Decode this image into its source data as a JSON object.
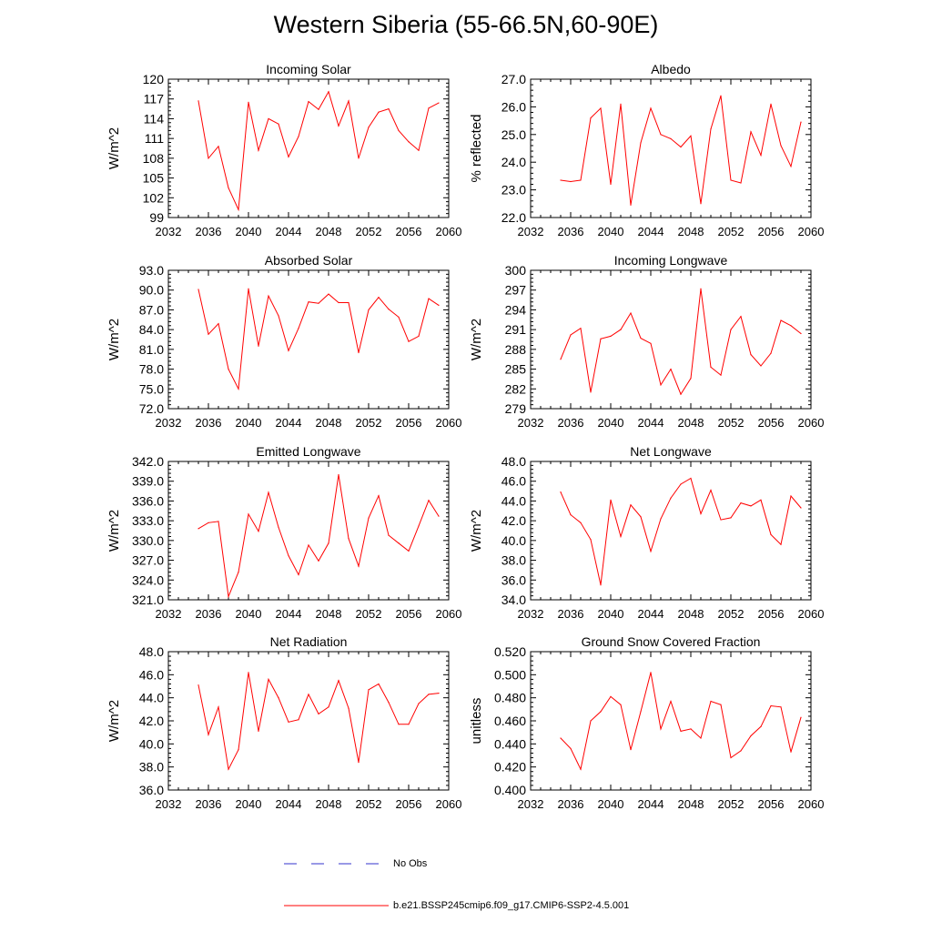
{
  "title": "Western Siberia (55-66.5N,60-90E)",
  "colors": {
    "model_line": "#ff0000",
    "obs_line": "#3333cc",
    "axis": "#000000"
  },
  "legend": {
    "obs_label": "No Obs",
    "model_label": "b.e21.BSSP245cmip6.f09_g17.CMIP6-SSP2-4.5.001"
  },
  "chart_data": [
    {
      "type": "line",
      "title": "Incoming Solar",
      "ylabel": "W/m^2",
      "xlim": [
        2032,
        2060
      ],
      "ylim": [
        99,
        120
      ],
      "xticks": [
        "2032",
        "2036",
        "2040",
        "2044",
        "2048",
        "2052",
        "2056",
        "2060"
      ],
      "yticks": [
        "99",
        "102",
        "105",
        "108",
        "111",
        "114",
        "117",
        "120"
      ],
      "series": [
        {
          "x": [
            2035,
            2036,
            2037,
            2038,
            2039,
            2040,
            2041,
            2042,
            2043,
            2044,
            2045,
            2046,
            2047,
            2048,
            2049,
            2050,
            2051,
            2052,
            2053,
            2054,
            2055,
            2056,
            2057,
            2058,
            2059
          ],
          "values": [
            116.7,
            108,
            109.8,
            103.5,
            100.2,
            116.5,
            109.2,
            114,
            113.2,
            108.2,
            111.3,
            116.6,
            115.4,
            118.1,
            112.9,
            116.7,
            108,
            112.7,
            115,
            115.5,
            112.2,
            110.5,
            109.2,
            115.6,
            116.4
          ]
        }
      ]
    },
    {
      "type": "line",
      "title": "Albedo",
      "ylabel": "% reflected",
      "xlim": [
        2032,
        2060
      ],
      "ylim": [
        22.0,
        27.0
      ],
      "xticks": [
        "2032",
        "2036",
        "2040",
        "2044",
        "2048",
        "2052",
        "2056",
        "2060"
      ],
      "yticks": [
        "22.0",
        "23.0",
        "24.0",
        "25.0",
        "26.0",
        "27.0"
      ],
      "series": [
        {
          "x": [
            2035,
            2036,
            2037,
            2038,
            2039,
            2040,
            2041,
            2042,
            2043,
            2044,
            2045,
            2046,
            2047,
            2048,
            2049,
            2050,
            2051,
            2052,
            2053,
            2054,
            2055,
            2056,
            2057,
            2058,
            2059
          ],
          "values": [
            23.35,
            23.3,
            23.35,
            25.6,
            25.95,
            23.2,
            26.1,
            22.45,
            24.7,
            25.95,
            25.0,
            24.85,
            24.55,
            24.95,
            22.5,
            25.2,
            26.4,
            23.35,
            23.25,
            25.1,
            24.25,
            26.1,
            24.6,
            23.85,
            25.45
          ]
        }
      ]
    },
    {
      "type": "line",
      "title": "Absorbed Solar",
      "ylabel": "W/m^2",
      "xlim": [
        2032,
        2060
      ],
      "ylim": [
        72.0,
        93.0
      ],
      "xticks": [
        "2032",
        "2036",
        "2040",
        "2044",
        "2048",
        "2052",
        "2056",
        "2060"
      ],
      "yticks": [
        "72.0",
        "75.0",
        "78.0",
        "81.0",
        "84.0",
        "87.0",
        "90.0",
        "93.0"
      ],
      "series": [
        {
          "x": [
            2035,
            2036,
            2037,
            2038,
            2039,
            2040,
            2041,
            2042,
            2043,
            2044,
            2045,
            2046,
            2047,
            2048,
            2049,
            2050,
            2051,
            2052,
            2053,
            2054,
            2055,
            2056,
            2057,
            2058,
            2059
          ],
          "values": [
            90.1,
            83.3,
            84.9,
            78.0,
            75.0,
            90.2,
            81.5,
            89.1,
            86.1,
            80.8,
            84.2,
            88.2,
            88.0,
            89.4,
            88.1,
            88.1,
            80.5,
            87.0,
            88.9,
            87.1,
            85.9,
            82.2,
            83.0,
            88.7,
            87.7
          ]
        }
      ]
    },
    {
      "type": "line",
      "title": "Incoming Longwave",
      "ylabel": "W/m^2",
      "xlim": [
        2032,
        2060
      ],
      "ylim": [
        279,
        300
      ],
      "xticks": [
        "2032",
        "2036",
        "2040",
        "2044",
        "2048",
        "2052",
        "2056",
        "2060"
      ],
      "yticks": [
        "279",
        "282",
        "285",
        "288",
        "291",
        "294",
        "297",
        "300"
      ],
      "series": [
        {
          "x": [
            2035,
            2036,
            2037,
            2038,
            2039,
            2040,
            2041,
            2042,
            2043,
            2044,
            2045,
            2046,
            2047,
            2048,
            2049,
            2050,
            2051,
            2052,
            2053,
            2054,
            2055,
            2056,
            2057,
            2058,
            2059
          ],
          "values": [
            286.5,
            290.2,
            291.2,
            281.5,
            289.6,
            290,
            291,
            293.5,
            289.7,
            288.9,
            282.6,
            285,
            281.2,
            283.6,
            297.2,
            285.3,
            284.1,
            291,
            293,
            287.2,
            285.5,
            287.4,
            292.4,
            291.6,
            290.4
          ]
        }
      ]
    },
    {
      "type": "line",
      "title": "Emitted Longwave",
      "ylabel": "W/m^2",
      "xlim": [
        2032,
        2060
      ],
      "ylim": [
        321.0,
        342.0
      ],
      "xticks": [
        "2032",
        "2036",
        "2040",
        "2044",
        "2048",
        "2052",
        "2056",
        "2060"
      ],
      "yticks": [
        "321.0",
        "324.0",
        "327.0",
        "330.0",
        "333.0",
        "336.0",
        "339.0",
        "342.0"
      ],
      "series": [
        {
          "x": [
            2035,
            2036,
            2037,
            2038,
            2039,
            2040,
            2041,
            2042,
            2043,
            2044,
            2045,
            2046,
            2047,
            2048,
            2049,
            2050,
            2051,
            2052,
            2053,
            2054,
            2055,
            2056,
            2057,
            2058,
            2059
          ],
          "values": [
            331.8,
            332.7,
            332.9,
            321.5,
            325.2,
            334,
            331.4,
            337.3,
            332,
            327.7,
            324.8,
            329.3,
            326.9,
            329.6,
            340,
            330.3,
            326.1,
            333.4,
            336.8,
            330.8,
            329.6,
            328.4,
            332.2,
            336.1,
            333.7
          ]
        }
      ]
    },
    {
      "type": "line",
      "title": "Net Longwave",
      "ylabel": "W/m^2",
      "xlim": [
        2032,
        2060
      ],
      "ylim": [
        34.0,
        48.0
      ],
      "xticks": [
        "2032",
        "2036",
        "2040",
        "2044",
        "2048",
        "2052",
        "2056",
        "2060"
      ],
      "yticks": [
        "34.0",
        "36.0",
        "38.0",
        "40.0",
        "42.0",
        "44.0",
        "46.0",
        "48.0"
      ],
      "series": [
        {
          "x": [
            2035,
            2036,
            2037,
            2038,
            2039,
            2040,
            2041,
            2042,
            2043,
            2044,
            2045,
            2046,
            2047,
            2048,
            2049,
            2050,
            2051,
            2052,
            2053,
            2054,
            2055,
            2056,
            2057,
            2058,
            2059
          ],
          "values": [
            44.9,
            42.6,
            41.8,
            40.1,
            35.5,
            44.1,
            40.4,
            43.6,
            42.4,
            38.9,
            42.2,
            44.3,
            45.7,
            46.3,
            42.7,
            45.1,
            42.1,
            42.3,
            43.8,
            43.5,
            44.1,
            40.6,
            39.6,
            44.5,
            43.3
          ]
        }
      ]
    },
    {
      "type": "line",
      "title": "Net Radiation",
      "ylabel": "W/m^2",
      "xlim": [
        2032,
        2060
      ],
      "ylim": [
        36.0,
        48.0
      ],
      "xticks": [
        "2032",
        "2036",
        "2040",
        "2044",
        "2048",
        "2052",
        "2056",
        "2060"
      ],
      "yticks": [
        "36.0",
        "38.0",
        "40.0",
        "42.0",
        "44.0",
        "46.0",
        "48.0"
      ],
      "series": [
        {
          "x": [
            2035,
            2036,
            2037,
            2038,
            2039,
            2040,
            2041,
            2042,
            2043,
            2044,
            2045,
            2046,
            2047,
            2048,
            2049,
            2050,
            2051,
            2052,
            2053,
            2054,
            2055,
            2056,
            2057,
            2058,
            2059
          ],
          "values": [
            45.1,
            40.8,
            43.2,
            37.8,
            39.5,
            46.2,
            41.1,
            45.6,
            44.0,
            41.9,
            42.1,
            44.3,
            42.6,
            43.2,
            45.5,
            43.1,
            38.4,
            44.7,
            45.2,
            43.6,
            41.7,
            41.7,
            43.5,
            44.3,
            44.4
          ]
        }
      ]
    },
    {
      "type": "line",
      "title": "Ground Snow Covered Fraction",
      "ylabel": "unitless",
      "xlim": [
        2032,
        2060
      ],
      "ylim": [
        0.4,
        0.52
      ],
      "xticks": [
        "2032",
        "2036",
        "2040",
        "2044",
        "2048",
        "2052",
        "2056",
        "2060"
      ],
      "yticks": [
        "0.400",
        "0.420",
        "0.440",
        "0.460",
        "0.480",
        "0.500",
        "0.520"
      ],
      "series": [
        {
          "x": [
            2035,
            2036,
            2037,
            2038,
            2039,
            2040,
            2041,
            2042,
            2043,
            2044,
            2045,
            2046,
            2047,
            2048,
            2049,
            2050,
            2051,
            2052,
            2053,
            2054,
            2055,
            2056,
            2057,
            2058,
            2059
          ],
          "values": [
            0.445,
            0.436,
            0.418,
            0.46,
            0.468,
            0.481,
            0.474,
            0.435,
            0.468,
            0.502,
            0.453,
            0.477,
            0.451,
            0.453,
            0.445,
            0.477,
            0.474,
            0.428,
            0.434,
            0.447,
            0.455,
            0.473,
            0.472,
            0.433,
            0.463
          ]
        }
      ]
    }
  ]
}
